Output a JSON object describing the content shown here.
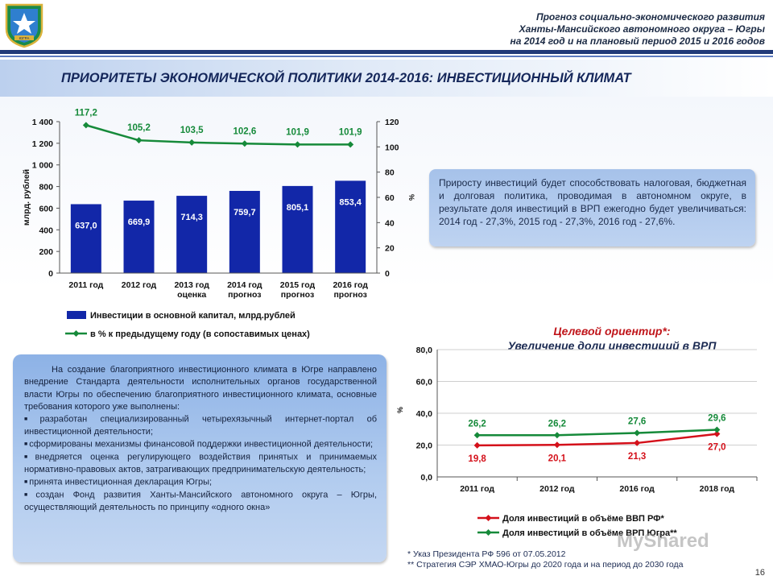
{
  "header": {
    "line1": "Прогноз социально-экономического развития",
    "line2": "Ханты-Мансийского автономного округа – Югры",
    "line3": "на 2014 год и на плановый период 2015 и 2016 годов",
    "emblem_text": "ЮГРА"
  },
  "title": "ПРИОРИТЕТЫ ЭКОНОМИЧЕСКОЙ ПОЛИТИКИ 2014-2016: ИНВЕСТИЦИОННЫЙ КЛИМАТ",
  "colors": {
    "bar": "#1227a8",
    "line_green": "#168a3a",
    "line_red": "#d4101a",
    "title": "#14265a"
  },
  "chart_data": [
    {
      "type": "bar",
      "categories": [
        [
          "2011 год"
        ],
        [
          "2012 год"
        ],
        [
          "2013 год",
          "оценка"
        ],
        [
          "2014 год",
          "прогноз"
        ],
        [
          "2015 год",
          "прогноз"
        ],
        [
          "2016 год",
          "прогноз"
        ]
      ],
      "values": [
        637.0,
        669.9,
        714.3,
        759.7,
        805.1,
        853.4
      ],
      "value_labels": [
        "637,0",
        "669,9",
        "714,3",
        "759,7",
        "805,1",
        "853,4"
      ],
      "ylim": [
        0,
        1400
      ],
      "yticks": [
        "0",
        "200",
        "400",
        "600",
        "800",
        "1 000",
        "1 200",
        "1 400"
      ],
      "ylabel": "млрд. рублей",
      "secondary": {
        "type": "line",
        "values": [
          117.2,
          105.2,
          103.5,
          102.6,
          101.9,
          101.9
        ],
        "value_labels": [
          "117,2",
          "105,2",
          "103,5",
          "102,6",
          "101,9",
          "101,9"
        ],
        "ylim": [
          0,
          120
        ],
        "yticks": [
          "0",
          "20",
          "40",
          "60",
          "80",
          "100",
          "120"
        ],
        "ylabel": "%"
      },
      "legend": [
        "Инвестиции в основной капитал, млрд.рублей",
        "в % к предыдущему году (в сопоставимых ценах)"
      ]
    },
    {
      "type": "line",
      "title": "Целевой ориентир*:",
      "subtitle": "Увеличение доли инвестиций в ВРП",
      "categories": [
        "2011 год",
        "2012 год",
        "2016 год",
        "2018 год"
      ],
      "ylim": [
        0,
        80
      ],
      "yticks": [
        "0,0",
        "20,0",
        "40,0",
        "60,0",
        "80,0"
      ],
      "ylabel": "%",
      "series": [
        {
          "name": "Доля инвестиций в объёме ВВП РФ*",
          "values": [
            19.8,
            20.1,
            21.3,
            27.0
          ],
          "labels": [
            "19,8",
            "20,1",
            "21,3",
            "27,0"
          ]
        },
        {
          "name": "Доля инвестиций в объёме ВРП Югра**",
          "values": [
            26.2,
            26.2,
            27.6,
            29.6
          ],
          "labels": [
            "26,2",
            "26,2",
            "27,6",
            "29,6"
          ]
        }
      ]
    }
  ],
  "box1": {
    "text": "Приросту инвестиций будет способствовать налоговая, бюджетная и долговая политика, проводимая в автономном округе, в результате доля инвестиций в ВРП ежегодно будет увеличиваться: 2014 год - 27,3%, 2015 год - 27,3%, 2016 год - 27,6%."
  },
  "box2": {
    "intro": "На создание благоприятного инвестиционного климата в Югре направлено внедрение Стандарта деятельности исполнительных органов государственной власти Югры по обеспечению благоприятного инвестиционного климата, основные требования которого уже выполнены:",
    "bullets": [
      "разработан специализированный четырехязычный интернет-портал об инвестиционной деятельности;",
      "сформированы механизмы финансовой поддержки инвестиционной деятельности;",
      "внедряется оценка регулирующего воздействия принятых и принимаемых нормативно-правовых актов, затрагивающих предпринимательскую деятельность;",
      "принята инвестиционная декларация Югры;",
      "создан Фонд развития Ханты-Мансийского автономного округа – Югры, осуществляющий деятельность по принципу «одного окна»"
    ]
  },
  "footnotes": {
    "note1": "*  Указ Президента РФ 596 от 07.05.2012",
    "note2": "**  Стратегия СЭР ХМАО-Югры до 2020 года и на период до 2030 года"
  },
  "page_number": "16",
  "watermark": "MyShared"
}
